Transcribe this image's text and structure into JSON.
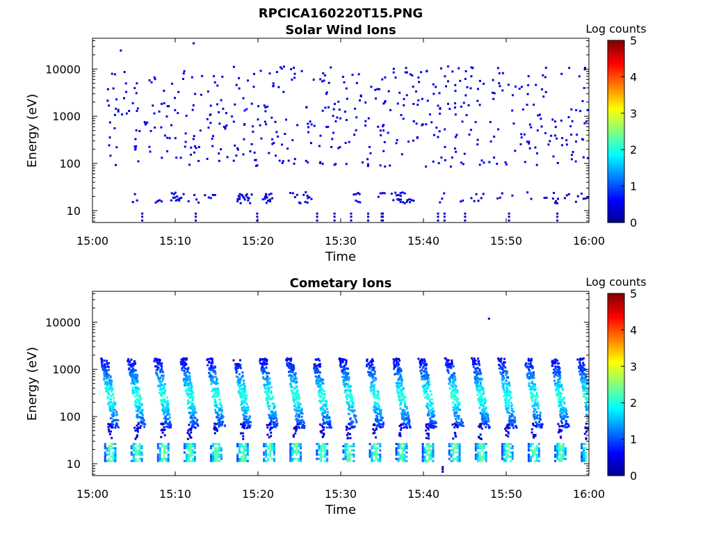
{
  "figure": {
    "title": "RPCICA160220T15.PNG"
  },
  "colormap": {
    "name": "jet",
    "stops": [
      "#00008f",
      "#0000ff",
      "#0080ff",
      "#00ffff",
      "#80ff80",
      "#ffff00",
      "#ff8000",
      "#ff0000",
      "#800000"
    ]
  },
  "chart_data": [
    {
      "type": "heatmap",
      "title": "Solar Wind Ions",
      "xlabel": "Time",
      "ylabel": "Energy (eV)",
      "x_range": [
        "15:00",
        "16:00"
      ],
      "x_ticks": [
        "15:00",
        "15:10",
        "15:20",
        "15:30",
        "15:40",
        "15:50",
        "16:00"
      ],
      "y_scale": "log",
      "y_range": [
        5.6,
        45000
      ],
      "y_ticks": [
        {
          "value": 10,
          "label": "10"
        },
        {
          "value": 100,
          "label": "100"
        },
        {
          "value": 1000,
          "label": "1000"
        },
        {
          "value": 10000,
          "label": "10000"
        }
      ],
      "colorbar": {
        "label": "Log counts",
        "range": [
          0,
          5
        ],
        "ticks": [
          "0",
          "1",
          "2",
          "3",
          "4",
          "5"
        ]
      },
      "pattern": {
        "description_values": "sparse single counts, mostly log counts 0 to 0.5",
        "low_band_energy_ev": [
          15,
          26
        ],
        "scatter_energy_ev": [
          90,
          12000
        ],
        "typical_log_counts": 0.3
      }
    },
    {
      "type": "heatmap",
      "title": "Cometary Ions",
      "xlabel": "Time",
      "ylabel": "Energy (eV)",
      "x_range": [
        "15:00",
        "16:00"
      ],
      "x_ticks": [
        "15:00",
        "15:10",
        "15:20",
        "15:30",
        "15:40",
        "15:50",
        "16:00"
      ],
      "y_scale": "log",
      "y_range": [
        5.6,
        45000
      ],
      "y_ticks": [
        {
          "value": 10,
          "label": "10"
        },
        {
          "value": 100,
          "label": "100"
        },
        {
          "value": 1000,
          "label": "1000"
        },
        {
          "value": 10000,
          "label": "10000"
        }
      ],
      "colorbar": {
        "label": "Log counts",
        "range": [
          0,
          5
        ],
        "ticks": [
          "0",
          "1",
          "2",
          "3",
          "4",
          "5"
        ]
      },
      "pattern": {
        "sweep_period_min": 3.2,
        "first_sweep_min": 2.1,
        "sweep_count": 19,
        "low_band_energy_ev": [
          12,
          28
        ],
        "high_energy_range_ev": [
          60,
          1800
        ],
        "peak_log_counts": 2.4
      }
    }
  ]
}
